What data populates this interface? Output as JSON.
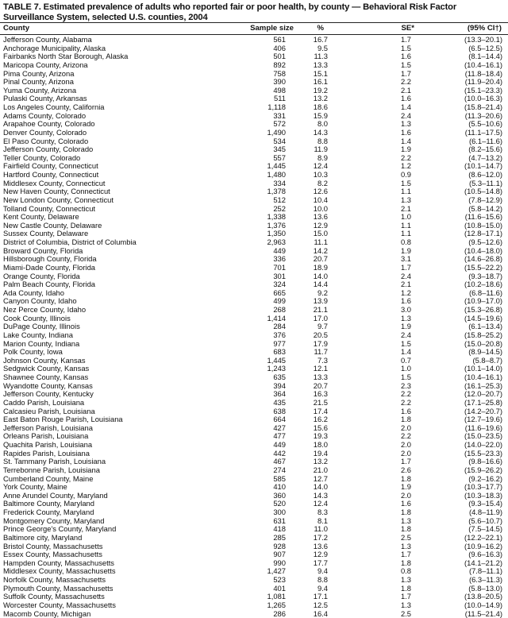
{
  "title": "TABLE 7. Estimated prevalence of adults who reported fair or poor health, by county — Behavioral Risk Factor Surveillance System, selected U.S. counties, 2004",
  "columns": [
    "County",
    "Sample size",
    "%",
    "SE*",
    "(95% CI†)"
  ],
  "rows": [
    [
      "Jefferson County, Alabama",
      "561",
      "16.7",
      "1.7",
      "(13.3–20.1)"
    ],
    [
      "Anchorage Municipality, Alaska",
      "406",
      "9.5",
      "1.5",
      "(6.5–12.5)"
    ],
    [
      "Fairbanks North Star Borough, Alaska",
      "501",
      "11.3",
      "1.6",
      "(8.1–14.4)"
    ],
    [
      "Maricopa County, Arizona",
      "892",
      "13.3",
      "1.5",
      "(10.4–16.1)"
    ],
    [
      "Pima County, Arizona",
      "758",
      "15.1",
      "1.7",
      "(11.8–18.4)"
    ],
    [
      "Pinal County, Arizona",
      "390",
      "16.1",
      "2.2",
      "(11.9–20.4)"
    ],
    [
      "Yuma County, Arizona",
      "498",
      "19.2",
      "2.1",
      "(15.1–23.3)"
    ],
    [
      "Pulaski County, Arkansas",
      "511",
      "13.2",
      "1.6",
      "(10.0–16.3)"
    ],
    [
      "Los Angeles County, California",
      "1,118",
      "18.6",
      "1.4",
      "(15.8–21.4)"
    ],
    [
      "Adams County, Colorado",
      "331",
      "15.9",
      "2.4",
      "(11.3–20.6)"
    ],
    [
      "Arapahoe County, Colorado",
      "572",
      "8.0",
      "1.3",
      "(5.5–10.6)"
    ],
    [
      "Denver County, Colorado",
      "1,490",
      "14.3",
      "1.6",
      "(11.1–17.5)"
    ],
    [
      "El Paso County, Colorado",
      "534",
      "8.8",
      "1.4",
      "(6.1–11.6)"
    ],
    [
      "Jefferson County, Colorado",
      "345",
      "11.9",
      "1.9",
      "(8.2–15.6)"
    ],
    [
      "Teller County, Colorado",
      "557",
      "8.9",
      "2.2",
      "(4.7–13.2)"
    ],
    [
      "Fairfield County, Connecticut",
      "1,445",
      "12.4",
      "1.2",
      "(10.1–14.7)"
    ],
    [
      "Hartford County, Connecticut",
      "1,480",
      "10.3",
      "0.9",
      "(8.6–12.0)"
    ],
    [
      "Middlesex County, Connecticut",
      "334",
      "8.2",
      "1.5",
      "(5.3–11.1)"
    ],
    [
      "New Haven County, Connecticut",
      "1,378",
      "12.6",
      "1.1",
      "(10.5–14.8)"
    ],
    [
      "New London County, Connecticut",
      "512",
      "10.4",
      "1.3",
      "(7.8–12.9)"
    ],
    [
      "Tolland County, Connecticut",
      "252",
      "10.0",
      "2.1",
      "(5.8–14.2)"
    ],
    [
      "Kent County, Delaware",
      "1,338",
      "13.6",
      "1.0",
      "(11.6–15.6)"
    ],
    [
      "New Castle County, Delaware",
      "1,376",
      "12.9",
      "1.1",
      "(10.8–15.0)"
    ],
    [
      "Sussex County, Delaware",
      "1,350",
      "15.0",
      "1.1",
      "(12.8–17.1)"
    ],
    [
      "District of Columbia, District of Columbia",
      "2,963",
      "11.1",
      "0.8",
      "(9.5–12.6)"
    ],
    [
      "Broward County, Florida",
      "449",
      "14.2",
      "1.9",
      "(10.4–18.0)"
    ],
    [
      "Hillsborough County, Florida",
      "336",
      "20.7",
      "3.1",
      "(14.6–26.8)"
    ],
    [
      "Miami-Dade County, Florida",
      "701",
      "18.9",
      "1.7",
      "(15.5–22.2)"
    ],
    [
      "Orange County, Florida",
      "301",
      "14.0",
      "2.4",
      "(9.3–18.7)"
    ],
    [
      "Palm Beach County, Florida",
      "324",
      "14.4",
      "2.1",
      "(10.2–18.6)"
    ],
    [
      "Ada County, Idaho",
      "665",
      "9.2",
      "1.2",
      "(6.8–11.6)"
    ],
    [
      "Canyon County, Idaho",
      "499",
      "13.9",
      "1.6",
      "(10.9–17.0)"
    ],
    [
      "Nez Perce County, Idaho",
      "268",
      "21.1",
      "3.0",
      "(15.3–26.8)"
    ],
    [
      "Cook County, Illinois",
      "1,414",
      "17.0",
      "1.3",
      "(14.5–19.6)"
    ],
    [
      "DuPage County, Illinois",
      "284",
      "9.7",
      "1.9",
      "(6.1–13.4)"
    ],
    [
      "Lake County, Indiana",
      "376",
      "20.5",
      "2.4",
      "(15.8–25.2)"
    ],
    [
      "Marion County, Indiana",
      "977",
      "17.9",
      "1.5",
      "(15.0–20.8)"
    ],
    [
      "Polk County, Iowa",
      "683",
      "11.7",
      "1.4",
      "(8.9–14.5)"
    ],
    [
      "Johnson County, Kansas",
      "1,445",
      "7.3",
      "0.7",
      "(5.8–8.7)"
    ],
    [
      "Sedgwick County, Kansas",
      "1,243",
      "12.1",
      "1.0",
      "(10.1–14.0)"
    ],
    [
      "Shawnee County, Kansas",
      "635",
      "13.3",
      "1.5",
      "(10.4–16.1)"
    ],
    [
      "Wyandotte County, Kansas",
      "394",
      "20.7",
      "2.3",
      "(16.1–25.3)"
    ],
    [
      "Jefferson County, Kentucky",
      "364",
      "16.3",
      "2.2",
      "(12.0–20.7)"
    ],
    [
      "Caddo Parish, Louisiana",
      "435",
      "21.5",
      "2.2",
      "(17.1–25.8)"
    ],
    [
      "Calcasieu Parish, Louisiana",
      "638",
      "17.4",
      "1.6",
      "(14.2–20.7)"
    ],
    [
      "East Baton Rouge Parish, Louisiana",
      "664",
      "16.2",
      "1.8",
      "(12.7–19.6)"
    ],
    [
      "Jefferson Parish, Louisiana",
      "427",
      "15.6",
      "2.0",
      "(11.6–19.6)"
    ],
    [
      "Orleans Parish, Louisiana",
      "477",
      "19.3",
      "2.2",
      "(15.0–23.5)"
    ],
    [
      "Quachita Parish, Louisiana",
      "449",
      "18.0",
      "2.0",
      "(14.0–22.0)"
    ],
    [
      "Rapides Parish, Louisiana",
      "442",
      "19.4",
      "2.0",
      "(15.5–23.3)"
    ],
    [
      "St. Tammany Parish, Louisiana",
      "467",
      "13.2",
      "1.7",
      "(9.8–16.6)"
    ],
    [
      "Terrebonne Parish, Louisiana",
      "274",
      "21.0",
      "2.6",
      "(15.9–26.2)"
    ],
    [
      "Cumberland County, Maine",
      "585",
      "12.7",
      "1.8",
      "(9.2–16.2)"
    ],
    [
      "York County, Maine",
      "410",
      "14.0",
      "1.9",
      "(10.3–17.7)"
    ],
    [
      "Anne Arundel County, Maryland",
      "360",
      "14.3",
      "2.0",
      "(10.3–18.3)"
    ],
    [
      "Baltimore County, Maryland",
      "520",
      "12.4",
      "1.6",
      "(9.3–15.4)"
    ],
    [
      "Frederick County, Maryland",
      "300",
      "8.3",
      "1.8",
      "(4.8–11.9)"
    ],
    [
      "Montgomery County, Maryland",
      "631",
      "8.1",
      "1.3",
      "(5.6–10.7)"
    ],
    [
      "Prince George's County, Maryland",
      "418",
      "11.0",
      "1.8",
      "(7.5–14.5)"
    ],
    [
      "Baltimore city, Maryland",
      "285",
      "17.2",
      "2.5",
      "(12.2–22.1)"
    ],
    [
      "Bristol County, Massachusetts",
      "928",
      "13.6",
      "1.3",
      "(10.9–16.2)"
    ],
    [
      "Essex County, Massachusetts",
      "907",
      "12.9",
      "1.7",
      "(9.6–16.3)"
    ],
    [
      "Hampden County, Massachusetts",
      "990",
      "17.7",
      "1.8",
      "(14.1–21.2)"
    ],
    [
      "Middlesex County, Massachusetts",
      "1,427",
      "9.4",
      "0.8",
      "(7.8–11.1)"
    ],
    [
      "Norfolk County, Massachusetts",
      "523",
      "8.8",
      "1.3",
      "(6.3–11.3)"
    ],
    [
      "Plymouth County, Massachusetts",
      "401",
      "9.4",
      "1.8",
      "(5.8–13.0)"
    ],
    [
      "Suffolk County, Massachusetts",
      "1,081",
      "17.1",
      "1.7",
      "(13.8–20.5)"
    ],
    [
      "Worcester County, Massachusetts",
      "1,265",
      "12.5",
      "1.3",
      "(10.0–14.9)"
    ],
    [
      "Macomb County, Michigan",
      "286",
      "16.4",
      "2.5",
      "(11.5–21.4)"
    ]
  ]
}
